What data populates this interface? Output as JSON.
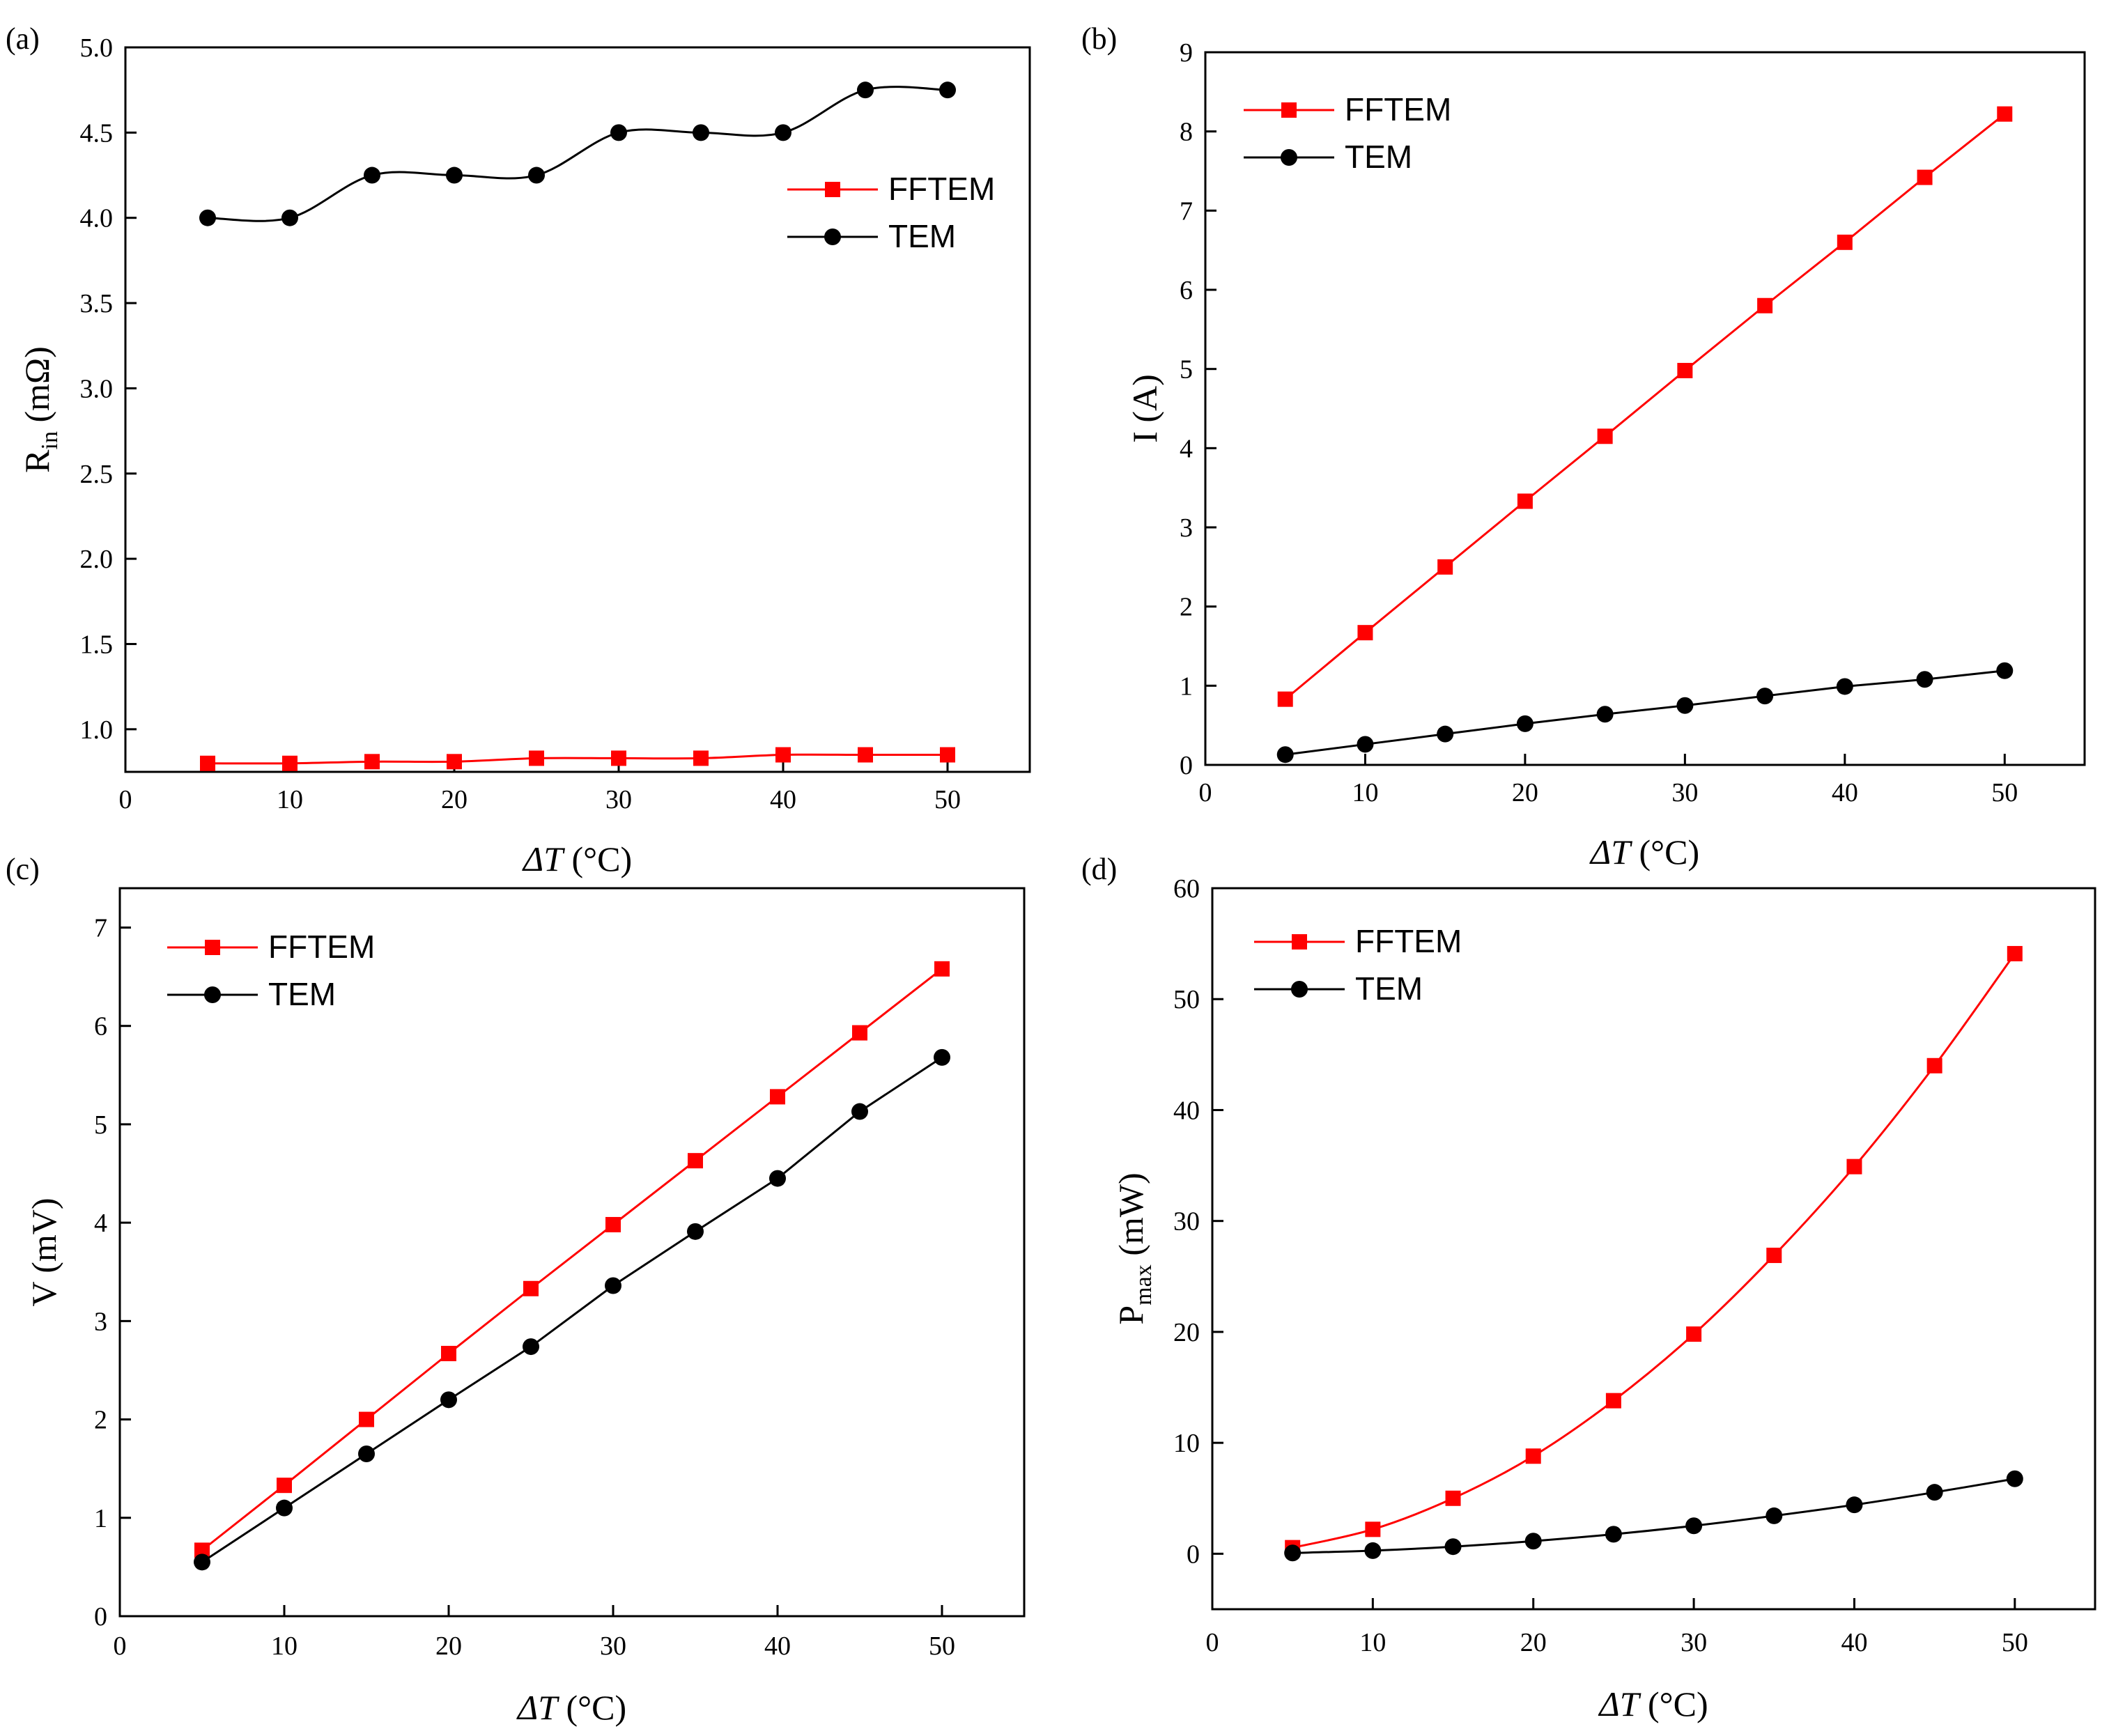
{
  "figure": {
    "x_axis_label_prefix": "ΔT",
    "x_axis_label_suffix": " (°C)",
    "series_colors": {
      "FFTEM": "#ff0000",
      "TEM": "#000000"
    },
    "series_markers": {
      "FFTEM": "square",
      "TEM": "circle"
    }
  },
  "chart_data": [
    {
      "panel": "(a)",
      "type": "line",
      "ylabel_main": "R",
      "ylabel_sub": "in",
      "ylabel_rest": " (mΩ)",
      "xlim": [
        0,
        55
      ],
      "ylim": [
        0.75,
        5.0
      ],
      "xticks": [
        0,
        10,
        20,
        30,
        40,
        50
      ],
      "xtick_labels": [
        "0",
        "10",
        "20",
        "30",
        "40",
        "50"
      ],
      "yticks": [
        1.0,
        1.5,
        2.0,
        2.5,
        3.0,
        3.5,
        4.0,
        4.5,
        5.0
      ],
      "ytick_labels": [
        "1.0",
        "1.5",
        "2.0",
        "2.5",
        "3.0",
        "3.5",
        "4.0",
        "4.5",
        "5.0"
      ],
      "legend_position": "center-right",
      "smooth": true,
      "x": [
        5,
        10,
        15,
        20,
        25,
        30,
        35,
        40,
        45,
        50
      ],
      "series": [
        {
          "name": "FFTEM",
          "values": [
            0.8,
            0.8,
            0.81,
            0.81,
            0.83,
            0.83,
            0.83,
            0.85,
            0.85,
            0.85
          ]
        },
        {
          "name": "TEM",
          "values": [
            4.0,
            4.0,
            4.25,
            4.25,
            4.25,
            4.5,
            4.5,
            4.5,
            4.75,
            4.75
          ]
        }
      ]
    },
    {
      "panel": "(b)",
      "type": "line",
      "ylabel_main": "I (A)",
      "ylabel_sub": "",
      "ylabel_rest": "",
      "xlim": [
        0,
        55
      ],
      "ylim": [
        0,
        9
      ],
      "xticks": [
        0,
        10,
        20,
        30,
        40,
        50
      ],
      "xtick_labels": [
        "0",
        "10",
        "20",
        "30",
        "40",
        "50"
      ],
      "yticks": [
        0,
        1,
        2,
        3,
        4,
        5,
        6,
        7,
        8,
        9
      ],
      "ytick_labels": [
        "0",
        "1",
        "2",
        "3",
        "4",
        "5",
        "6",
        "7",
        "8",
        "9"
      ],
      "legend_position": "top-left",
      "smooth": false,
      "x": [
        5,
        10,
        15,
        20,
        25,
        30,
        35,
        40,
        45,
        50
      ],
      "series": [
        {
          "name": "FFTEM",
          "values": [
            0.83,
            1.67,
            2.5,
            3.33,
            4.15,
            4.98,
            5.8,
            6.6,
            7.42,
            8.22
          ]
        },
        {
          "name": "TEM",
          "values": [
            0.13,
            0.26,
            0.39,
            0.52,
            0.64,
            0.75,
            0.87,
            0.99,
            1.08,
            1.19
          ]
        }
      ]
    },
    {
      "panel": "(c)",
      "type": "line",
      "ylabel_main": "V (mV)",
      "ylabel_sub": "",
      "ylabel_rest": "",
      "xlim": [
        0,
        55
      ],
      "ylim": [
        0,
        7.4
      ],
      "xticks": [
        0,
        10,
        20,
        30,
        40,
        50
      ],
      "xtick_labels": [
        "0",
        "10",
        "20",
        "30",
        "40",
        "50"
      ],
      "yticks": [
        0,
        1,
        2,
        3,
        4,
        5,
        6,
        7
      ],
      "ytick_labels": [
        "0",
        "1",
        "2",
        "3",
        "4",
        "5",
        "6",
        "7"
      ],
      "legend_position": "top-left",
      "smooth": false,
      "x": [
        5,
        10,
        15,
        20,
        25,
        30,
        35,
        40,
        45,
        50
      ],
      "series": [
        {
          "name": "FFTEM",
          "values": [
            0.67,
            1.33,
            2.0,
            2.67,
            3.33,
            3.98,
            4.63,
            5.28,
            5.93,
            6.58
          ]
        },
        {
          "name": "TEM",
          "values": [
            0.55,
            1.1,
            1.65,
            2.2,
            2.74,
            3.36,
            3.91,
            4.45,
            5.13,
            5.68
          ]
        }
      ]
    },
    {
      "panel": "(d)",
      "type": "line",
      "ylabel_main": "P",
      "ylabel_sub": "max",
      "ylabel_rest": " (mW)",
      "xlim": [
        0,
        55
      ],
      "ylim": [
        -5,
        60
      ],
      "xticks": [
        0,
        10,
        20,
        30,
        40,
        50
      ],
      "xtick_labels": [
        "0",
        "10",
        "20",
        "30",
        "40",
        "50"
      ],
      "yticks": [
        0,
        10,
        20,
        30,
        40,
        50,
        60
      ],
      "ytick_labels": [
        "0",
        "10",
        "20",
        "30",
        "40",
        "50",
        "60"
      ],
      "legend_position": "top-left",
      "smooth": true,
      "x": [
        5,
        10,
        15,
        20,
        25,
        30,
        35,
        40,
        45,
        50
      ],
      "series": [
        {
          "name": "FFTEM",
          "values": [
            0.55,
            2.2,
            5.0,
            8.8,
            13.8,
            19.8,
            26.9,
            34.9,
            44.0,
            54.1
          ]
        },
        {
          "name": "TEM",
          "values": [
            0.07,
            0.28,
            0.64,
            1.14,
            1.76,
            2.52,
            3.42,
            4.41,
            5.54,
            6.76
          ]
        }
      ]
    }
  ]
}
